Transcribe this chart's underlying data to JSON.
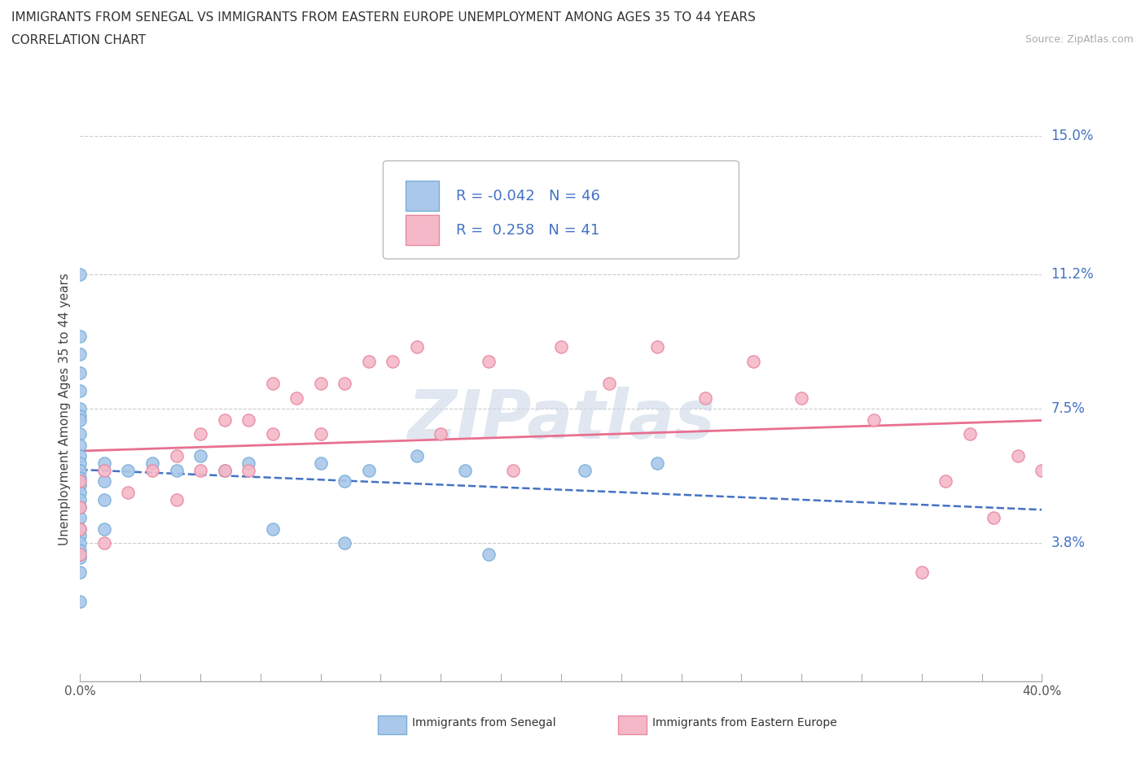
{
  "title_line1": "IMMIGRANTS FROM SENEGAL VS IMMIGRANTS FROM EASTERN EUROPE UNEMPLOYMENT AMONG AGES 35 TO 44 YEARS",
  "title_line2": "CORRELATION CHART",
  "source_text": "Source: ZipAtlas.com",
  "ylabel": "Unemployment Among Ages 35 to 44 years",
  "x_min": 0.0,
  "x_max": 0.4,
  "y_min": 0.0,
  "y_max": 0.15,
  "y_ticks": [
    0.038,
    0.075,
    0.112,
    0.15
  ],
  "y_tick_labels": [
    "3.8%",
    "7.5%",
    "11.2%",
    "15.0%"
  ],
  "grid_color": "#cccccc",
  "background_color": "#ffffff",
  "r_senegal": -0.042,
  "n_senegal": 46,
  "r_eastern": 0.258,
  "n_eastern": 41,
  "senegal_color": "#aac8ea",
  "senegal_edge": "#7aaed8",
  "eastern_color": "#f5b8c8",
  "eastern_edge": "#e888a0",
  "senegal_line_color": "#4472c4",
  "eastern_line_color": "#e87090",
  "legend_text_color": "#4472c4",
  "senegal_scatter_x": [
    0.0,
    0.0,
    0.0,
    0.0,
    0.0,
    0.0,
    0.0,
    0.0,
    0.0,
    0.0,
    0.0,
    0.0,
    0.0,
    0.0,
    0.0,
    0.0,
    0.0,
    0.0,
    0.0,
    0.0,
    0.0,
    0.0,
    0.0,
    0.0,
    0.0,
    0.0,
    0.01,
    0.01,
    0.01,
    0.01,
    0.02,
    0.03,
    0.04,
    0.05,
    0.06,
    0.07,
    0.08,
    0.1,
    0.11,
    0.11,
    0.12,
    0.14,
    0.16,
    0.17,
    0.21,
    0.24
  ],
  "senegal_scatter_y": [
    0.112,
    0.095,
    0.09,
    0.085,
    0.08,
    0.075,
    0.073,
    0.072,
    0.068,
    0.065,
    0.062,
    0.06,
    0.058,
    0.056,
    0.054,
    0.052,
    0.05,
    0.048,
    0.045,
    0.042,
    0.04,
    0.038,
    0.036,
    0.034,
    0.03,
    0.022,
    0.06,
    0.055,
    0.05,
    0.042,
    0.058,
    0.06,
    0.058,
    0.062,
    0.058,
    0.06,
    0.042,
    0.06,
    0.038,
    0.055,
    0.058,
    0.062,
    0.058,
    0.035,
    0.058,
    0.06
  ],
  "eastern_scatter_x": [
    0.0,
    0.0,
    0.0,
    0.0,
    0.01,
    0.01,
    0.02,
    0.03,
    0.04,
    0.04,
    0.05,
    0.05,
    0.06,
    0.06,
    0.07,
    0.07,
    0.08,
    0.08,
    0.09,
    0.1,
    0.1,
    0.11,
    0.12,
    0.13,
    0.14,
    0.15,
    0.17,
    0.18,
    0.2,
    0.22,
    0.24,
    0.26,
    0.28,
    0.3,
    0.33,
    0.35,
    0.36,
    0.37,
    0.38,
    0.39,
    0.4
  ],
  "eastern_scatter_y": [
    0.055,
    0.048,
    0.042,
    0.035,
    0.058,
    0.038,
    0.052,
    0.058,
    0.062,
    0.05,
    0.068,
    0.058,
    0.072,
    0.058,
    0.072,
    0.058,
    0.082,
    0.068,
    0.078,
    0.082,
    0.068,
    0.082,
    0.088,
    0.088,
    0.092,
    0.068,
    0.088,
    0.058,
    0.092,
    0.082,
    0.092,
    0.078,
    0.088,
    0.078,
    0.072,
    0.03,
    0.055,
    0.068,
    0.045,
    0.062,
    0.058
  ],
  "watermark_text": "ZIPatlas",
  "watermark_color": "#ccd8e8",
  "watermark_alpha": 0.6
}
